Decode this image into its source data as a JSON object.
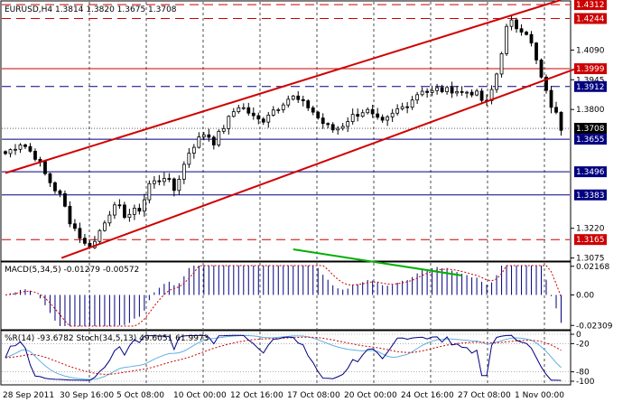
{
  "chart_data": [
    {
      "type": "candlestick",
      "title": "EURUSD,H4  1.3814 1.3820 1.3675 1.3708",
      "ylim": [
        1.306,
        1.433
      ],
      "yticks": [
        "1.4312",
        "1.4244",
        "1.4090",
        "1.3999",
        "1.3945",
        "1.3912",
        "1.3800",
        "1.3708",
        "1.3655",
        "1.3496",
        "1.3383",
        "1.3220",
        "1.3165",
        "1.3075"
      ],
      "xticks": [
        "28 Sep 2011",
        "30 Sep 16:00",
        "5 Oct 08:00",
        "10 Oct 00:00",
        "12 Oct 16:00",
        "17 Oct 08:00",
        "20 Oct 00:00",
        "24 Oct 16:00",
        "27 Oct 08:00",
        "1 Nov 00:00"
      ],
      "path": [
        [
          0,
          1.3585
        ],
        [
          10,
          1.364
        ],
        [
          20,
          1.356
        ],
        [
          25,
          1.348
        ],
        [
          30,
          1.342
        ],
        [
          35,
          1.337
        ],
        [
          40,
          1.326
        ],
        [
          45,
          1.32
        ],
        [
          50,
          1.3135
        ],
        [
          55,
          1.314
        ],
        [
          60,
          1.323
        ],
        [
          65,
          1.33
        ],
        [
          70,
          1.333
        ],
        [
          75,
          1.328
        ],
        [
          80,
          1.33
        ],
        [
          85,
          1.332
        ],
        [
          90,
          1.344
        ],
        [
          95,
          1.345
        ],
        [
          100,
          1.348
        ],
        [
          105,
          1.34
        ],
        [
          110,
          1.35
        ],
        [
          115,
          1.36
        ],
        [
          120,
          1.365
        ],
        [
          125,
          1.369
        ],
        [
          130,
          1.364
        ],
        [
          135,
          1.37
        ],
        [
          140,
          1.376
        ],
        [
          145,
          1.382
        ],
        [
          150,
          1.38
        ],
        [
          155,
          1.376
        ],
        [
          160,
          1.374
        ],
        [
          165,
          1.379
        ],
        [
          170,
          1.381
        ],
        [
          175,
          1.385
        ],
        [
          180,
          1.386
        ],
        [
          185,
          1.383
        ],
        [
          190,
          1.381
        ],
        [
          195,
          1.376
        ],
        [
          200,
          1.372
        ],
        [
          205,
          1.37
        ],
        [
          210,
          1.372
        ],
        [
          215,
          1.376
        ],
        [
          220,
          1.378
        ],
        [
          225,
          1.38
        ],
        [
          230,
          1.376
        ],
        [
          235,
          1.373
        ],
        [
          240,
          1.376
        ],
        [
          245,
          1.38
        ],
        [
          250,
          1.382
        ],
        [
          255,
          1.386
        ],
        [
          260,
          1.39
        ],
        [
          265,
          1.388
        ],
        [
          270,
          1.39
        ],
        [
          275,
          1.389
        ],
        [
          280,
          1.39
        ],
        [
          285,
          1.388
        ],
        [
          290,
          1.389
        ],
        [
          295,
          1.387
        ],
        [
          300,
          1.382
        ],
        [
          303,
          1.388
        ],
        [
          306,
          1.395
        ],
        [
          309,
          1.405
        ],
        [
          312,
          1.418
        ],
        [
          315,
          1.423
        ],
        [
          318,
          1.421
        ],
        [
          321,
          1.419
        ],
        [
          324,
          1.42
        ],
        [
          327,
          1.415
        ],
        [
          330,
          1.408
        ],
        [
          333,
          1.399
        ],
        [
          336,
          1.392
        ],
        [
          339,
          1.385
        ],
        [
          342,
          1.38
        ],
        [
          345,
          1.376
        ],
        [
          347,
          1.371
        ]
      ],
      "levels": [
        {
          "value": "1.4312",
          "color": "#cc0000",
          "style": "dash"
        },
        {
          "value": "1.4244",
          "color": "#cc0000",
          "style": "dash"
        },
        {
          "value": "1.3999",
          "color": "#cc0000",
          "style": "solid"
        },
        {
          "value": "1.3912",
          "color": "#000080",
          "style": "dash"
        },
        {
          "value": "1.3708",
          "color": "#000000",
          "style": "dot"
        },
        {
          "value": "1.3655",
          "color": "#000080",
          "style": "solid"
        },
        {
          "value": "1.3496",
          "color": "#000080",
          "style": "solid"
        },
        {
          "value": "1.3383",
          "color": "#000080",
          "style": "solid"
        },
        {
          "value": "1.3165",
          "color": "#cc0000",
          "style": "dash"
        }
      ],
      "channel": {
        "color": "#d00000",
        "lines": [
          {
            "x0": 0,
            "y0": 1.349,
            "x1": 347,
            "y1": 1.4335
          },
          {
            "x0": 35,
            "y0": 1.3075,
            "x1": 360,
            "y1": 1.401
          }
        ]
      }
    },
    {
      "type": "bar",
      "title": "MACD(5,34,5) -0.01279 -0.00572",
      "yticks": [
        "0.02168",
        "0.00",
        "-0.02309"
      ],
      "ylim": [
        -0.0236,
        0.0222
      ],
      "colors": {
        "bars": "#000080",
        "signal": "#cc0000",
        "trend": "#00b000"
      }
    },
    {
      "type": "line",
      "title": "%R(14) -93.6782  Stoch(34,5,13) 49.6051 61.9973",
      "yticks": [
        "0",
        "-20",
        "-80",
        "-100"
      ],
      "ylim": [
        -100,
        0
      ],
      "colors": {
        "wpr": "#000080",
        "stoch_main": "#60b0e0",
        "stoch_signal": "#cc0000"
      }
    }
  ]
}
